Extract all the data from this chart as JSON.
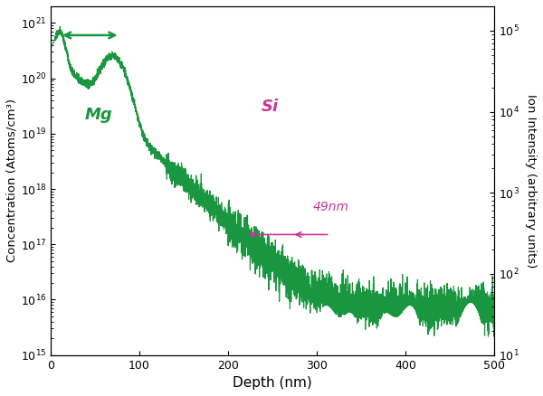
{
  "xlabel": "Depth (nm)",
  "ylabel_left": "Concentration (Atoms/cm³)",
  "ylabel_right": "Ion Intensity (arbitrary units)",
  "xlim": [
    0,
    500
  ],
  "ylim_left": [
    1000000000000000.0,
    2e+21
  ],
  "ylim_right": [
    10,
    200000.0
  ],
  "bg_color": "#ffffff",
  "green_color": "#1a9640",
  "magenta_color": "#cc3399",
  "label_mg": "Mg",
  "label_si": "Si",
  "label_49nm": "49nm",
  "seed": 77
}
